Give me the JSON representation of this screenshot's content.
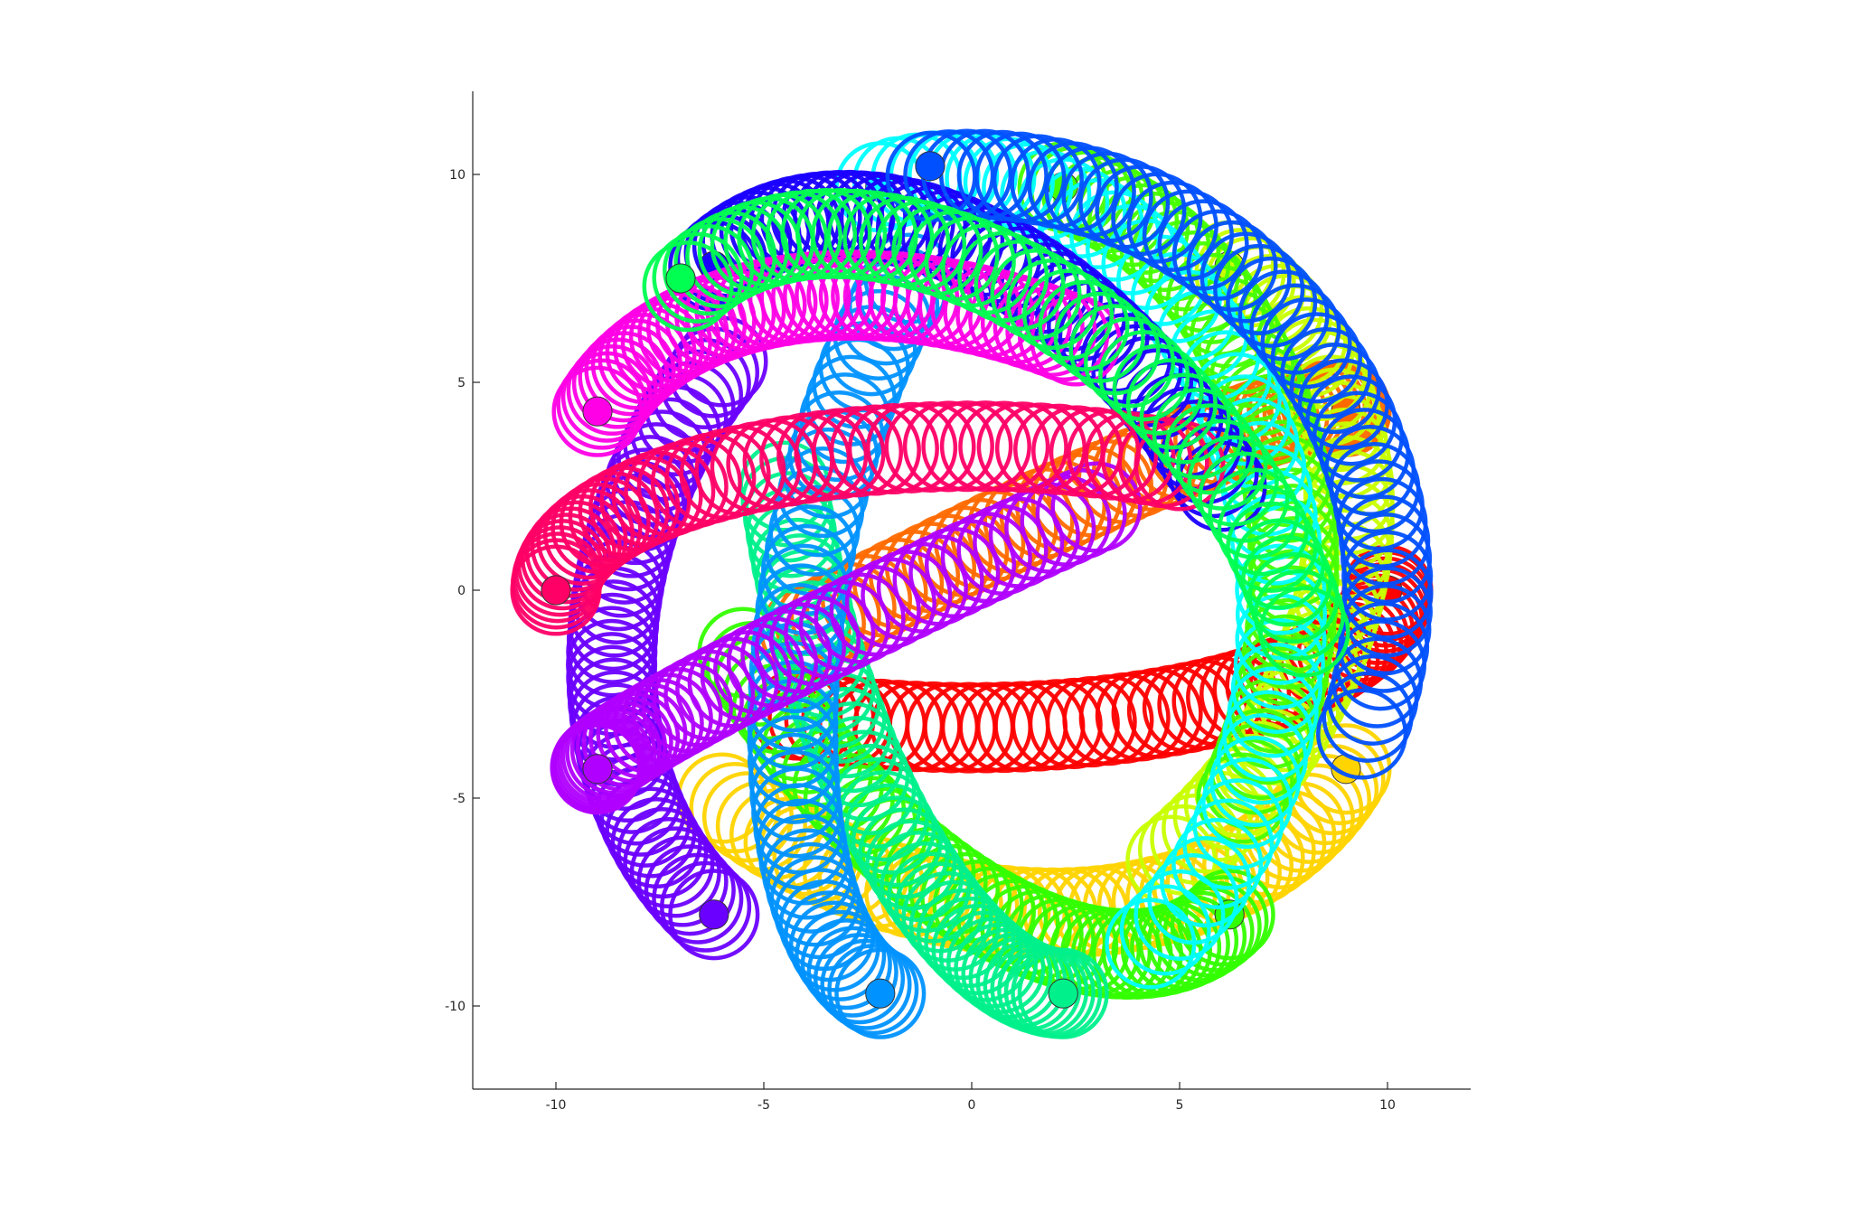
{
  "chart_data": {
    "type": "scatter",
    "title": "",
    "xlabel": "",
    "ylabel": "",
    "xlim": [
      -12,
      12
    ],
    "ylim": [
      -12,
      12
    ],
    "aspect": "equal",
    "grid": false,
    "legend": "none",
    "axis_lines": "left-and-bottom",
    "x_ticks": [
      {
        "value": -10,
        "label": "-10"
      },
      {
        "value": -5,
        "label": "-5"
      },
      {
        "value": 0,
        "label": "0"
      },
      {
        "value": 5,
        "label": "5"
      },
      {
        "value": 10,
        "label": "10"
      }
    ],
    "y_ticks": [
      {
        "value": -10,
        "label": "-10"
      },
      {
        "value": -5,
        "label": "-5"
      },
      {
        "value": 0,
        "label": "0"
      },
      {
        "value": 5,
        "label": "5"
      },
      {
        "value": 10,
        "label": "10"
      }
    ],
    "marker": "hollow-circle",
    "marker_radius_data_units": 1.05,
    "marker_endpoint_radius_data_units": 0.35,
    "points_per_series": 48,
    "description_of_series": "16 tube-like series, each a dense sequence of hollow circles tracing a great-circle arc on a sphere of radius 10, projected onto the x–y plane; each series starts at a filled endpoint marker",
    "series": [
      {
        "color": "#ff0000",
        "start": [
          10.0,
          0.0
        ],
        "end": [
          -4.2,
          -3.0
        ]
      },
      {
        "color": "#ff6a00",
        "start": [
          9.0,
          4.3
        ],
        "end": [
          -4.0,
          -1.0
        ]
      },
      {
        "color": "#ffd400",
        "start": [
          9.0,
          -4.3
        ],
        "end": [
          -6.0,
          -5.0
        ]
      },
      {
        "color": "#c8ff00",
        "start": [
          6.2,
          7.8
        ],
        "end": [
          4.8,
          -6.5
        ]
      },
      {
        "color": "#44ff00",
        "start": [
          2.2,
          9.7
        ],
        "end": [
          6.5,
          -5.0
        ]
      },
      {
        "color": "#33ff00",
        "start": [
          6.2,
          -7.8
        ],
        "end": [
          -5.5,
          -1.5
        ]
      },
      {
        "color": "#00f08c",
        "start": [
          2.2,
          -9.7
        ],
        "end": [
          -4.5,
          2.5
        ]
      },
      {
        "color": "#00ffff",
        "start": [
          -2.2,
          9.7
        ],
        "end": [
          4.3,
          -8.5
        ]
      },
      {
        "color": "#0092ff",
        "start": [
          -2.2,
          -9.7
        ],
        "end": [
          -1.5,
          7.5
        ]
      },
      {
        "color": "#1a00ff",
        "start": [
          -6.2,
          7.8
        ],
        "end": [
          6.0,
          2.5
        ]
      },
      {
        "color": "#6a00ff",
        "start": [
          -6.2,
          -7.8
        ],
        "end": [
          -6.0,
          5.5
        ]
      },
      {
        "color": "#b000ff",
        "start": [
          -9.0,
          -4.3
        ],
        "end": [
          3.0,
          2.0
        ]
      },
      {
        "color": "#ff00e6",
        "start": [
          -9.0,
          4.3
        ],
        "end": [
          2.5,
          6.0
        ]
      },
      {
        "color": "#ff0066",
        "start": [
          -10.0,
          0.0
        ],
        "end": [
          5.0,
          3.0
        ]
      },
      {
        "color": "#0050ff",
        "start": [
          -1.0,
          10.2
        ],
        "end": [
          9.5,
          -3.5
        ]
      },
      {
        "color": "#00ff50",
        "start": [
          -7.0,
          7.5
        ],
        "end": [
          8.0,
          -1.0
        ]
      }
    ]
  }
}
